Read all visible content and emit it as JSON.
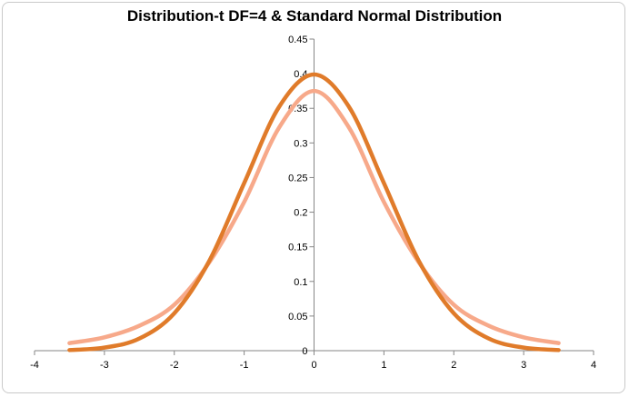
{
  "chart_data": {
    "type": "line",
    "title": "Distribution-t DF=4 & Standard Normal Distribution",
    "xlabel": "",
    "ylabel": "",
    "xlim": [
      -4,
      4
    ],
    "ylim": [
      0,
      0.45
    ],
    "x_ticks": [
      "-4",
      "-3",
      "-2",
      "-1",
      "0",
      "1",
      "2",
      "3",
      "4"
    ],
    "y_ticks": [
      "0",
      "0.05",
      "0.1",
      "0.15",
      "0.2",
      "0.25",
      "0.3",
      "0.35",
      "0.4",
      "0.45"
    ],
    "x_range_plotted": [
      -3.5,
      3.5
    ],
    "grid": false,
    "legend": "none",
    "series": [
      {
        "name": "Standard Normal",
        "color": "#e07b2a",
        "x": [
          -3.5,
          -3,
          -2.5,
          -2,
          -1.5,
          -1,
          -0.5,
          0,
          0.5,
          1,
          1.5,
          2,
          2.5,
          3,
          3.5
        ],
        "values": [
          0.0009,
          0.0044,
          0.0175,
          0.054,
          0.1295,
          0.242,
          0.3521,
          0.3989,
          0.3521,
          0.242,
          0.1295,
          0.054,
          0.0175,
          0.0044,
          0.0009
        ]
      },
      {
        "name": "t (DF=4)",
        "color": "#f7a98a",
        "x": [
          -3.5,
          -3,
          -2.5,
          -2,
          -1.5,
          -1,
          -0.5,
          0,
          0.5,
          1,
          1.5,
          2,
          2.5,
          3,
          3.5
        ],
        "values": [
          0.0109,
          0.0193,
          0.036,
          0.0663,
          0.1274,
          0.2147,
          0.3222,
          0.375,
          0.3222,
          0.2147,
          0.1274,
          0.0663,
          0.036,
          0.0193,
          0.0109
        ]
      }
    ]
  }
}
